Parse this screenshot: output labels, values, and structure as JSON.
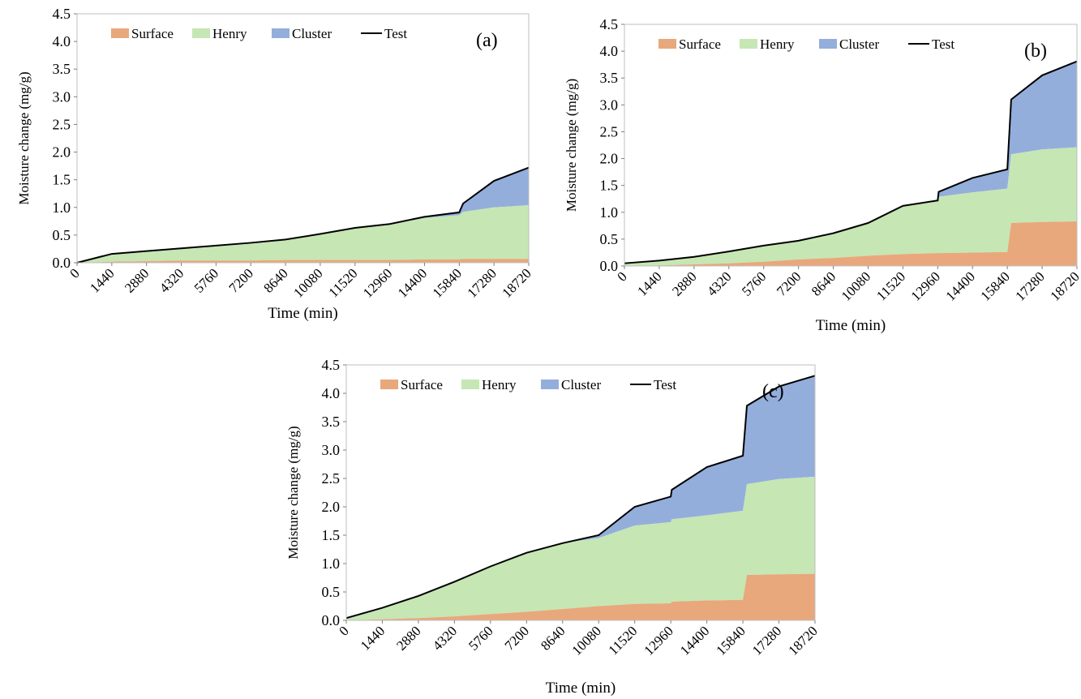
{
  "colors": {
    "surface": "#e8a87c",
    "henry": "#c6e6b4",
    "cluster": "#94aedc",
    "test": "#000000"
  },
  "chart_data": [
    {
      "type": "area",
      "panel_label": "(a)",
      "xlabel": "Time (min)",
      "ylabel": "Moisture change (mg/g)",
      "ylim": [
        0,
        4.5
      ],
      "xlim": [
        0,
        18720
      ],
      "x_ticks": [
        "0",
        "1440",
        "2880",
        "4320",
        "5760",
        "7200",
        "8640",
        "10080",
        "11520",
        "12960",
        "14400",
        "15840",
        "17280",
        "18720"
      ],
      "y_ticks": [
        "0.0",
        "0.5",
        "1.0",
        "1.5",
        "2.0",
        "2.5",
        "3.0",
        "3.5",
        "4.0",
        "4.5"
      ],
      "legend": [
        "Surface",
        "Henry",
        "Cluster",
        "Test"
      ],
      "legend_placement": "top",
      "x": [
        0,
        1440,
        2880,
        4320,
        5760,
        7200,
        8640,
        10080,
        11520,
        12960,
        14400,
        15840,
        16000,
        17280,
        18720
      ],
      "surface": [
        0,
        0.02,
        0.03,
        0.04,
        0.04,
        0.04,
        0.05,
        0.05,
        0.05,
        0.05,
        0.06,
        0.06,
        0.07,
        0.07,
        0.07
      ],
      "henry": [
        0,
        0.14,
        0.18,
        0.22,
        0.27,
        0.32,
        0.37,
        0.47,
        0.58,
        0.65,
        0.75,
        0.8,
        0.85,
        0.93,
        0.97
      ],
      "cluster": [
        0,
        0,
        0,
        0,
        0,
        0,
        0,
        0,
        0,
        0,
        0.02,
        0.05,
        0.15,
        0.48,
        0.68
      ],
      "test": [
        0,
        0.16,
        0.21,
        0.26,
        0.31,
        0.36,
        0.42,
        0.52,
        0.63,
        0.7,
        0.83,
        0.91,
        1.07,
        1.48,
        1.72
      ]
    },
    {
      "type": "area",
      "panel_label": "(b)",
      "xlabel": "Time (min)",
      "ylabel": "Moisture change (mg/g)",
      "ylim": [
        0,
        4.5
      ],
      "xlim": [
        0,
        18720
      ],
      "x_ticks": [
        "0",
        "1440",
        "2880",
        "4320",
        "5760",
        "7200",
        "8640",
        "10080",
        "11520",
        "12960",
        "14400",
        "15840",
        "17280",
        "18720"
      ],
      "y_ticks": [
        "0.0",
        "0.5",
        "1.0",
        "1.5",
        "2.0",
        "2.5",
        "3.0",
        "3.5",
        "4.0",
        "4.5"
      ],
      "legend": [
        "Surface",
        "Henry",
        "Cluster",
        "Test"
      ],
      "legend_placement": "top",
      "x": [
        0,
        1440,
        2880,
        4320,
        5760,
        7200,
        8640,
        10080,
        11520,
        12960,
        13000,
        14400,
        15840,
        16000,
        17280,
        18720
      ],
      "surface": [
        0,
        0.01,
        0.03,
        0.05,
        0.08,
        0.12,
        0.15,
        0.19,
        0.22,
        0.24,
        0.24,
        0.25,
        0.26,
        0.8,
        0.82,
        0.83
      ],
      "henry": [
        0.04,
        0.09,
        0.14,
        0.22,
        0.3,
        0.35,
        0.46,
        0.61,
        0.9,
        0.98,
        1.05,
        1.12,
        1.18,
        1.28,
        1.35,
        1.38
      ],
      "cluster": [
        0,
        0,
        0,
        0,
        0,
        0,
        0,
        0,
        0,
        0,
        0.09,
        0.27,
        0.36,
        1.02,
        1.38,
        1.6
      ],
      "test": [
        0.05,
        0.1,
        0.17,
        0.27,
        0.38,
        0.47,
        0.61,
        0.8,
        1.12,
        1.22,
        1.38,
        1.64,
        1.8,
        3.1,
        3.55,
        3.81
      ]
    },
    {
      "type": "area",
      "panel_label": "(c)",
      "xlabel": "Time (min)",
      "ylabel": "Moisture change (mg/g)",
      "ylim": [
        0,
        4.5
      ],
      "xlim": [
        0,
        18720
      ],
      "x_ticks": [
        "0",
        "1440",
        "2880",
        "4320",
        "5760",
        "7200",
        "8640",
        "10080",
        "11520",
        "12960",
        "14400",
        "15840",
        "17280",
        "18720"
      ],
      "y_ticks": [
        "0.0",
        "0.5",
        "1.0",
        "1.5",
        "2.0",
        "2.5",
        "3.0",
        "3.5",
        "4.0",
        "4.5"
      ],
      "legend": [
        "Surface",
        "Henry",
        "Cluster",
        "Test"
      ],
      "legend_placement": "top",
      "x": [
        0,
        1440,
        2880,
        4320,
        5760,
        7200,
        8640,
        10080,
        11520,
        12960,
        13000,
        14400,
        15840,
        16000,
        17280,
        18720
      ],
      "surface": [
        0,
        0.02,
        0.04,
        0.07,
        0.11,
        0.15,
        0.2,
        0.25,
        0.29,
        0.3,
        0.33,
        0.35,
        0.36,
        0.8,
        0.81,
        0.82
      ],
      "henry": [
        0.04,
        0.2,
        0.39,
        0.61,
        0.84,
        1.04,
        1.16,
        1.2,
        1.38,
        1.43,
        1.45,
        1.5,
        1.57,
        1.6,
        1.68,
        1.71
      ],
      "cluster": [
        0,
        0,
        0,
        0,
        0,
        0,
        0,
        0.05,
        0.33,
        0.45,
        0.52,
        0.85,
        0.97,
        1.38,
        1.63,
        1.78
      ],
      "test": [
        0.04,
        0.22,
        0.43,
        0.68,
        0.95,
        1.19,
        1.36,
        1.5,
        2.0,
        2.18,
        2.3,
        2.7,
        2.9,
        3.78,
        4.12,
        4.31
      ]
    }
  ]
}
